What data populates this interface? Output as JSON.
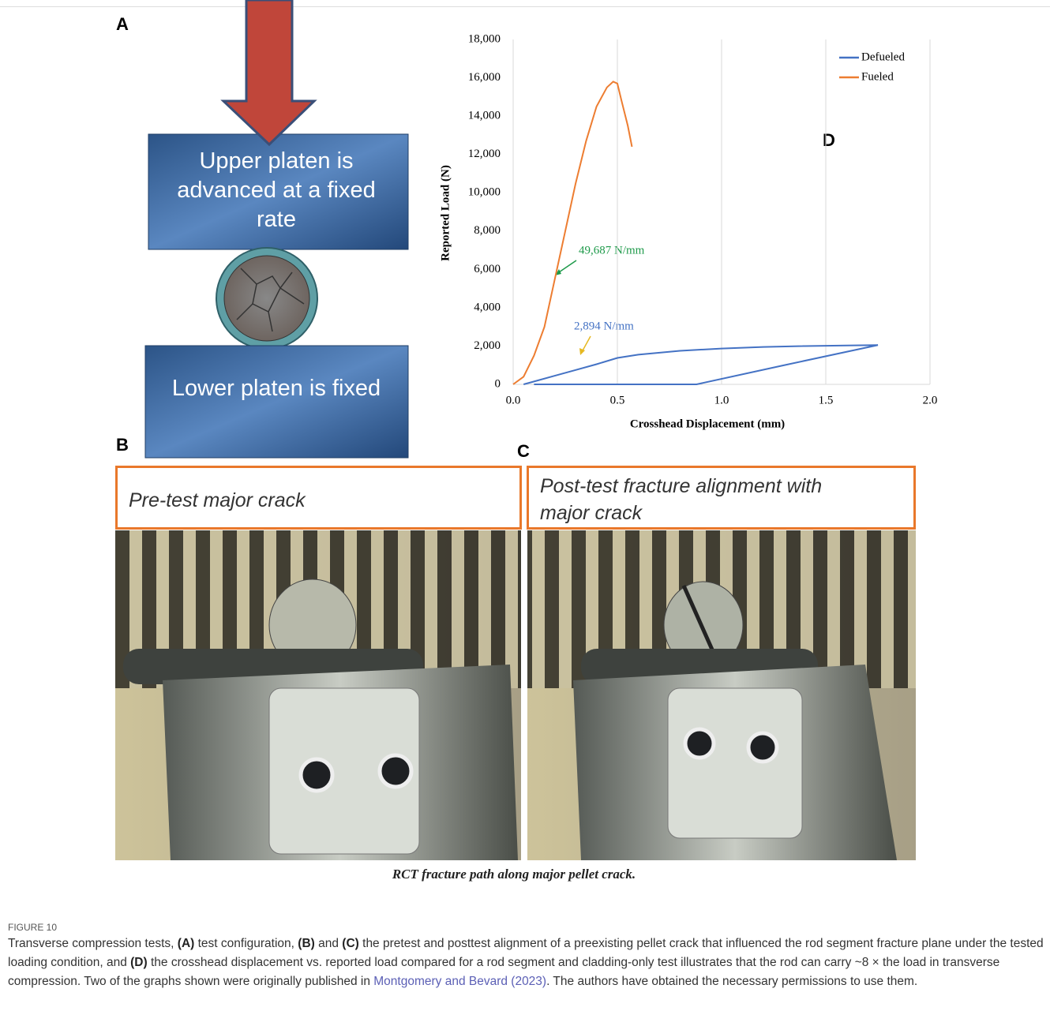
{
  "panel_a": {
    "label": "A",
    "upper": "Upper platen is advanced at a fixed rate",
    "lower": "Lower platen is fixed"
  },
  "panel_b": {
    "label": "B",
    "text": "Pre-test major crack"
  },
  "panel_c": {
    "label": "C",
    "text": "Post-test fracture alignment with major crack"
  },
  "photo_caption": "RCT fracture path along major pellet crack.",
  "chart_data": {
    "type": "line",
    "panel_label": "D",
    "x_label": "Crosshead Displacement (mm)",
    "y_label": "Reported Load (N)",
    "xlim": [
      0,
      2
    ],
    "xticks": [
      {
        "value": 0,
        "label": "0.0"
      },
      {
        "value": 0.5,
        "label": "0.5"
      },
      {
        "value": 1,
        "label": "1.0"
      },
      {
        "value": 1.5,
        "label": "1.5"
      },
      {
        "value": 2,
        "label": "2.0"
      }
    ],
    "ylim": [
      0,
      18000
    ],
    "yticks": [
      0,
      {
        "value": 2000,
        "label": "2,000"
      },
      {
        "value": 4000,
        "label": "4,000"
      },
      {
        "value": 6000,
        "label": "6,000"
      },
      {
        "value": 8000,
        "label": "8,000"
      },
      {
        "value": 10000,
        "label": "10,000"
      },
      {
        "value": 12000,
        "label": "12,000"
      },
      {
        "value": 14000,
        "label": "14,000"
      },
      {
        "value": 16000,
        "label": "16,000"
      },
      {
        "value": 18000,
        "label": "18,000"
      }
    ],
    "grid": "x",
    "legend": "top-right",
    "series": [
      {
        "name": "Defueled",
        "color": "#4472c4",
        "x": [
          0.05,
          0.1,
          0.2,
          0.3,
          0.4,
          0.5,
          0.6,
          0.8,
          1.0,
          1.2,
          1.4,
          1.6,
          1.75,
          1.3,
          0.88,
          0.5,
          0.1
        ],
        "values": [
          0,
          150,
          450,
          750,
          1050,
          1380,
          1550,
          1750,
          1870,
          1950,
          2000,
          2030,
          2050,
          1000,
          0,
          0,
          0
        ]
      },
      {
        "name": "Fueled",
        "color": "#ed7d31",
        "x": [
          0,
          0.05,
          0.1,
          0.15,
          0.2,
          0.25,
          0.3,
          0.35,
          0.4,
          0.45,
          0.48,
          0.5,
          0.52,
          0.55,
          0.57
        ],
        "values": [
          0,
          400,
          1500,
          3000,
          5500,
          8000,
          10500,
          12700,
          14500,
          15500,
          15800,
          15700,
          14800,
          13500,
          12400
        ]
      }
    ],
    "annotations": [
      {
        "text": "49,687 N/mm",
        "color": "#1e9a4a"
      },
      {
        "text": "2,894 N/mm",
        "color": "#4472c4"
      }
    ]
  },
  "figure": {
    "label": "FIGURE 10",
    "caption": [
      "Transverse compression tests, ",
      "(A)",
      " test configuration, ",
      "(B)",
      " and ",
      "(C)",
      " the pretest and posttest alignment of a preexisting pellet crack that influenced the rod segment fracture plane under the tested loading condition, and ",
      "(D)",
      " the crosshead displacement vs. reported load compared for a rod segment and cladding-only test illustrates that the rod can carry ~8 × the load in transverse compression. Two of the graphs shown were originally published in ",
      "Montgomery and Bevard (2023)",
      ". The authors have obtained the necessary permissions to use them."
    ]
  }
}
